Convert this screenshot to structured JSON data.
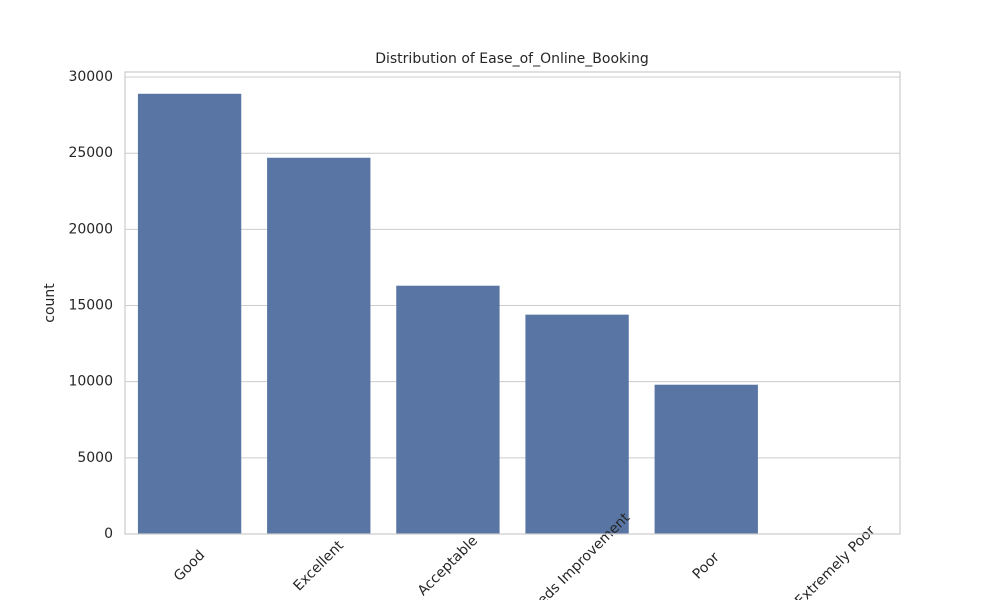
{
  "chart_data": {
    "type": "bar",
    "title": "Distribution of Ease_of_Online_Booking",
    "y_label": "count",
    "categories": [
      "Good",
      "Excellent",
      "Acceptable",
      "Needs Improvement",
      "Poor",
      "Extremely Poor"
    ],
    "values": [
      28900,
      24700,
      16300,
      14400,
      9800,
      30
    ],
    "color": "#5975a4",
    "ylim": [
      0,
      30330
    ],
    "yticks": [
      0,
      5000,
      10000,
      15000,
      20000,
      25000,
      30000
    ],
    "grid": true
  }
}
